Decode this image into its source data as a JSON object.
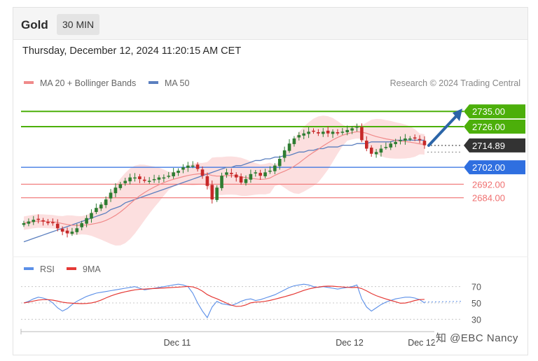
{
  "header": {
    "title": "Gold",
    "timeframe": "30 MIN"
  },
  "datetime": "Thursday, December 12, 2024 11:20:15 AM CET",
  "legend": {
    "ma20_label": "MA 20 + Bollinger Bands",
    "ma50_label": "MA 50",
    "rsi_label": "RSI",
    "ma9_label": "9MA"
  },
  "credit": "Research © 2024 Trading Central",
  "watermark": "知 @EBC Nancy",
  "colors": {
    "up": "#2e7d32",
    "down": "#c62828",
    "ma20": "#f08a8a",
    "ma50": "#5b7fbf",
    "band": "#fbd4d4",
    "green_level": "#4caf0a",
    "blue_level": "#2f6fe0",
    "red_level": "#f07070",
    "rsi": "#5b8fe8",
    "ma9": "#e53935",
    "arrow": "#2b65a8"
  },
  "chart_data": {
    "type": "candlestick",
    "instrument": "Gold",
    "timeframe": "30 MIN",
    "price_ylim": [
      2650,
      2745
    ],
    "x_labels": [
      "Dec 11",
      "Dec 12",
      "Dec 12"
    ],
    "levels": [
      {
        "value": 2735.0,
        "label": "2735.00",
        "kind": "resistance",
        "color": "green"
      },
      {
        "value": 2726.0,
        "label": "2726.00",
        "kind": "resistance",
        "color": "green"
      },
      {
        "value": 2714.89,
        "label": "2714.89",
        "kind": "current",
        "color": "dark"
      },
      {
        "value": 2702.0,
        "label": "2702.00",
        "kind": "pivot",
        "color": "blue"
      },
      {
        "value": 2692.0,
        "label": "2692.00",
        "kind": "support",
        "color": "red"
      },
      {
        "value": 2684.0,
        "label": "2684.00",
        "kind": "support",
        "color": "red"
      }
    ],
    "forecast_arrow": {
      "from": 2714.89,
      "to": 2735.0
    },
    "close_series": [
      2669,
      2670,
      2671,
      2671,
      2670,
      2669,
      2669,
      2666,
      2664,
      2663,
      2664,
      2666,
      2669,
      2672,
      2675,
      2678,
      2680,
      2683,
      2687,
      2690,
      2692,
      2694,
      2696,
      2696,
      2695,
      2694,
      2694,
      2695,
      2696,
      2696,
      2697,
      2699,
      2700,
      2702,
      2703,
      2703,
      2701,
      2697,
      2691,
      2683,
      2690,
      2697,
      2699,
      2698,
      2696,
      2693,
      2695,
      2698,
      2699,
      2697,
      2699,
      2700,
      2703,
      2707,
      2712,
      2716,
      2719,
      2721,
      2722,
      2723,
      2723,
      2722,
      2723,
      2722,
      2723,
      2722,
      2723,
      2724,
      2725,
      2726,
      2718,
      2713,
      2710,
      2711,
      2713,
      2714,
      2716,
      2717,
      2718,
      2719,
      2719,
      2719,
      2718,
      2715
    ],
    "ma50_series": [
      2658,
      2659,
      2660,
      2661,
      2662,
      2663,
      2664,
      2665,
      2666,
      2667,
      2668,
      2669,
      2670,
      2671,
      2672,
      2673,
      2674,
      2675,
      2677,
      2678,
      2679,
      2681,
      2682,
      2683,
      2684,
      2685,
      2686,
      2687,
      2688,
      2689,
      2690,
      2691,
      2692,
      2693,
      2694,
      2695,
      2696,
      2697,
      2698,
      2699,
      2700,
      2701,
      2702,
      2702,
      2703,
      2703,
      2704,
      2705,
      2706,
      2706,
      2707,
      2707,
      2708,
      2708,
      2709,
      2709,
      2710,
      2711,
      2711,
      2712,
      2712,
      2713,
      2713,
      2714,
      2714,
      2714,
      2715,
      2715,
      2715,
      2716,
      2716,
      2716,
      2717,
      2717,
      2717,
      2717,
      2717,
      2718,
      2718,
      2718,
      2718,
      2718,
      2718,
      2718
    ],
    "rsi": {
      "ylim": [
        20,
        80
      ],
      "ticks": [
        70,
        50,
        30
      ],
      "values": [
        50,
        52,
        55,
        57,
        56,
        54,
        50,
        44,
        40,
        43,
        48,
        52,
        55,
        58,
        60,
        62,
        63,
        64,
        65,
        66,
        67,
        68,
        69,
        70,
        68,
        66,
        67,
        68,
        69,
        70,
        71,
        72,
        73,
        72,
        70,
        62,
        50,
        40,
        32,
        45,
        52,
        49,
        48,
        47,
        49,
        52,
        54,
        55,
        53,
        54,
        56,
        58,
        60,
        63,
        66,
        69,
        71,
        72,
        73,
        72,
        70,
        69,
        70,
        69,
        68,
        67,
        68,
        69,
        70,
        72,
        55,
        45,
        40,
        44,
        48,
        51,
        53,
        55,
        56,
        57,
        57,
        56,
        54,
        50
      ]
    }
  }
}
